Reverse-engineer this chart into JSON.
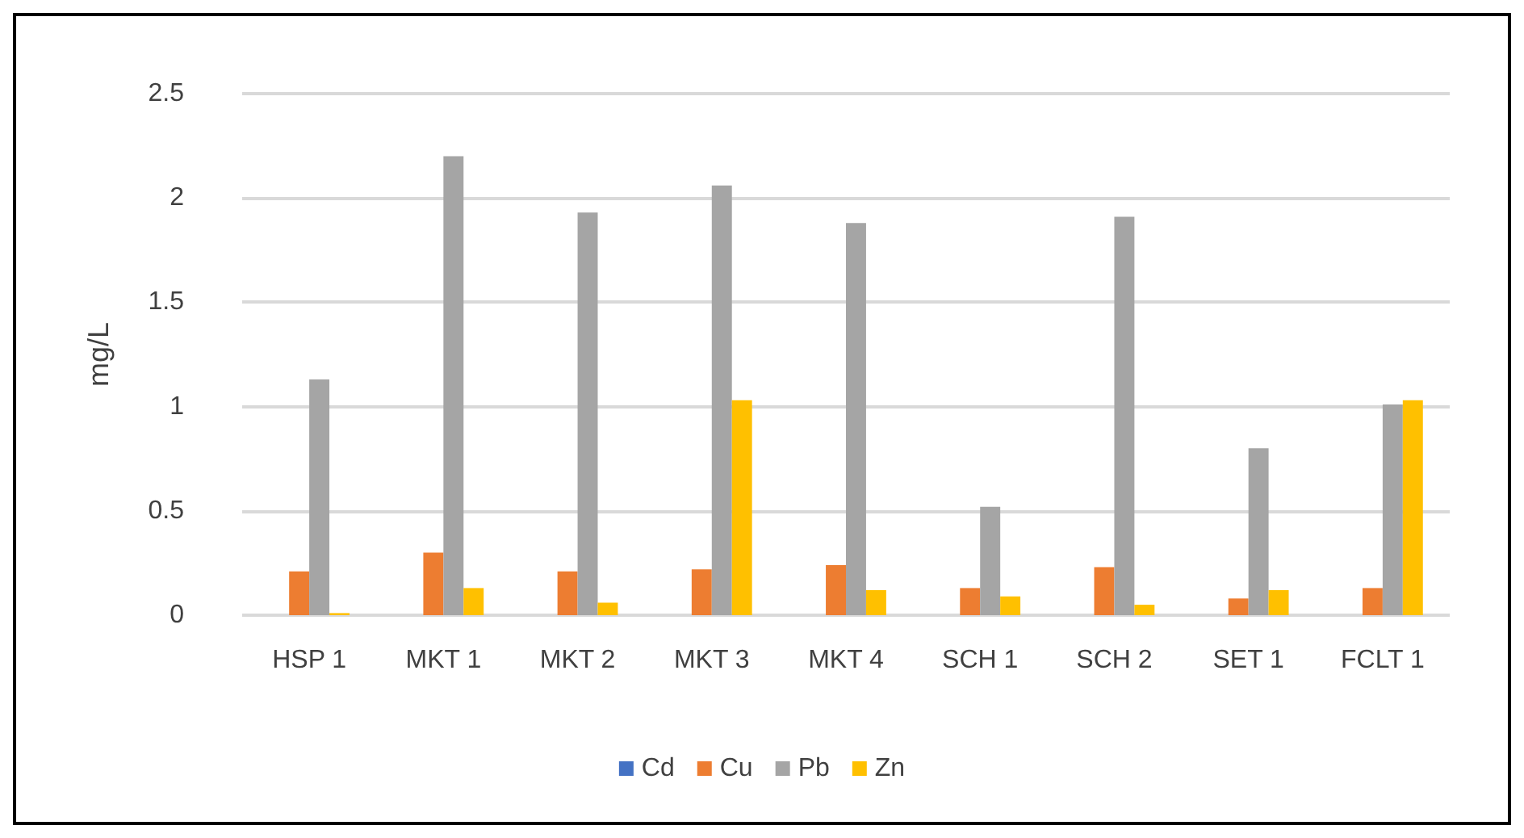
{
  "chart_data": {
    "type": "bar",
    "ylabel": "mg/L",
    "categories": [
      "HSP 1",
      "MKT 1",
      "MKT 2",
      "MKT 3",
      "MKT 4",
      "SCH 1",
      "SCH 2",
      "SET 1",
      "FCLT 1"
    ],
    "series": [
      {
        "name": "Cd",
        "color": "#4472c4",
        "values": [
          0,
          0,
          0,
          0,
          0,
          0,
          0,
          0,
          0
        ]
      },
      {
        "name": "Cu",
        "color": "#ed7d31",
        "values": [
          0.21,
          0.3,
          0.21,
          0.22,
          0.24,
          0.13,
          0.23,
          0.08,
          0.13
        ]
      },
      {
        "name": "Pb",
        "color": "#a5a5a5",
        "values": [
          1.13,
          2.2,
          1.93,
          2.06,
          1.88,
          0.52,
          1.91,
          0.8,
          1.01
        ]
      },
      {
        "name": "Zn",
        "color": "#ffc000",
        "values": [
          0.01,
          0.13,
          0.06,
          1.03,
          0.12,
          0.09,
          0.05,
          0.12,
          1.03
        ]
      }
    ],
    "ylim": [
      0,
      2.5
    ],
    "yticks": [
      0,
      0.5,
      1,
      1.5,
      2,
      2.5
    ],
    "grid": "y",
    "legend": "bottom"
  }
}
